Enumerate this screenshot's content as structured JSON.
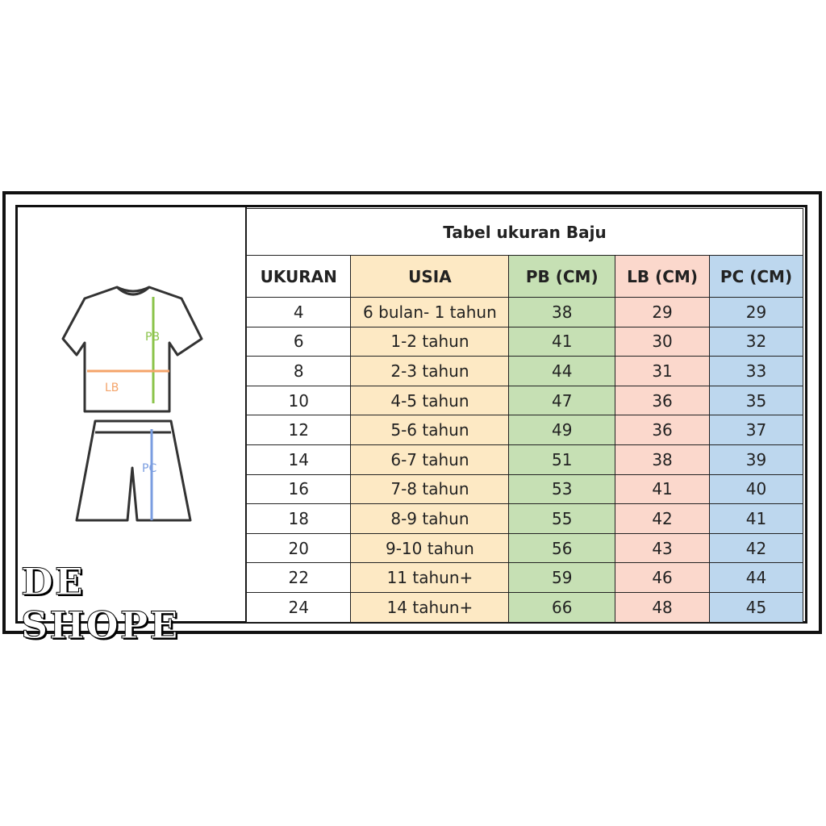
{
  "title": "Tabel ukuran Baju",
  "brand": "DE SHOPE",
  "illustration": {
    "labels": [
      "PB",
      "LB",
      "PC"
    ]
  },
  "table": {
    "headers": [
      "UKURAN",
      "USIA",
      "PB (CM)",
      "LB (CM)",
      "PC (CM)"
    ],
    "rows": [
      [
        "4",
        "6 bulan- 1 tahun",
        "38",
        "29",
        "29"
      ],
      [
        "6",
        "1-2 tahun",
        "41",
        "30",
        "32"
      ],
      [
        "8",
        "2-3 tahun",
        "44",
        "31",
        "33"
      ],
      [
        "10",
        "4-5 tahun",
        "47",
        "36",
        "35"
      ],
      [
        "12",
        "5-6 tahun",
        "49",
        "36",
        "37"
      ],
      [
        "14",
        "6-7 tahun",
        "51",
        "38",
        "39"
      ],
      [
        "16",
        "7-8 tahun",
        "53",
        "41",
        "40"
      ],
      [
        "18",
        "8-9 tahun",
        "55",
        "42",
        "41"
      ],
      [
        "20",
        "9-10 tahun",
        "56",
        "43",
        "42"
      ],
      [
        "22",
        "11 tahun+",
        "59",
        "46",
        "44"
      ],
      [
        "24",
        "14 tahun+",
        "66",
        "48",
        "45"
      ]
    ]
  }
}
